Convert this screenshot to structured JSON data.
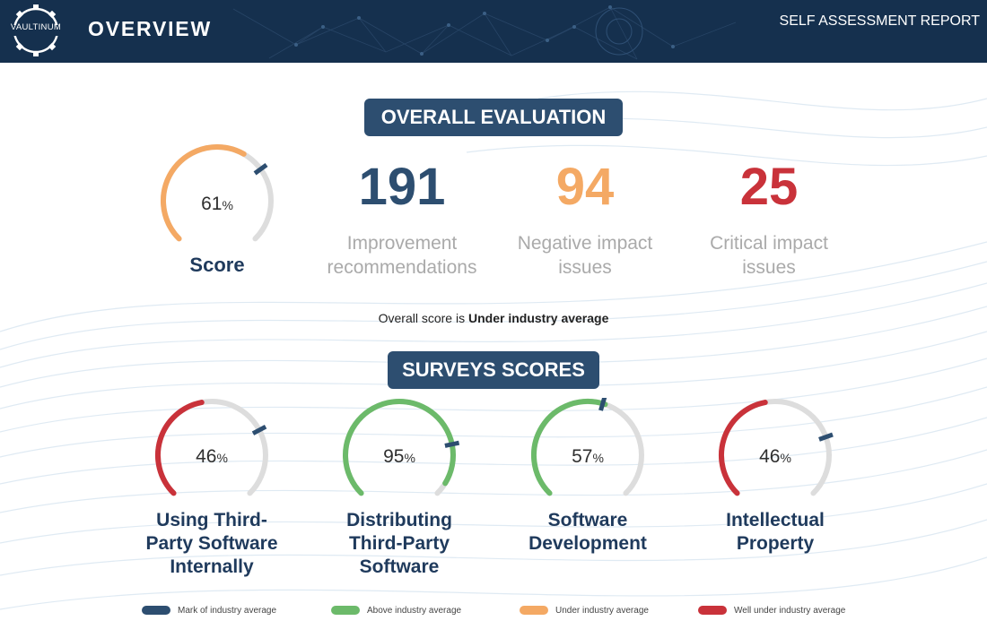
{
  "header": {
    "logo_text": "VAULTINUM",
    "title": "OVERVIEW",
    "report_label": "SELF ASSESSMENT REPORT"
  },
  "overall": {
    "heading": "OVERALL EVALUATION",
    "score": {
      "value": "61",
      "unit": "%",
      "label": "Score",
      "fraction": 0.61,
      "color": "#f4a964"
    },
    "stats": [
      {
        "number": "191",
        "label_line1": "Improvement",
        "label_line2": "recommendations",
        "color": "#2d4e70"
      },
      {
        "number": "94",
        "label_line1": "Negative impact",
        "label_line2": "issues",
        "color": "#f4a964"
      },
      {
        "number": "25",
        "label_line1": "Critical impact",
        "label_line2": "issues",
        "color": "#c9323a"
      }
    ],
    "summary_prefix": "Overall score is ",
    "summary_status": "Under industry average"
  },
  "surveys": {
    "heading": "SURVEYS SCORES",
    "items": [
      {
        "value": "46",
        "unit": "%",
        "fraction": 0.46,
        "color": "#c9323a",
        "title_lines": [
          "Using Third-",
          "Party Software",
          "Internally"
        ]
      },
      {
        "value": "95",
        "unit": "%",
        "fraction": 0.95,
        "color": "#6cba6a",
        "title_lines": [
          "Distributing",
          "Third-Party",
          "Software"
        ]
      },
      {
        "value": "57",
        "unit": "%",
        "fraction": 0.57,
        "color": "#6cba6a",
        "title_lines": [
          "Software",
          "Development"
        ]
      },
      {
        "value": "46",
        "unit": "%",
        "fraction": 0.46,
        "color": "#c9323a",
        "title_lines": [
          "Intellectual",
          "Property"
        ]
      }
    ]
  },
  "legend": [
    {
      "label": "Mark of industry average",
      "color": "#2d4e70"
    },
    {
      "label": "Above industry average",
      "color": "#6cba6a"
    },
    {
      "label": "Under industry average",
      "color": "#f4a964"
    },
    {
      "label": "Well under industry average",
      "color": "#c9323a"
    }
  ],
  "colors": {
    "header_bg": "#15304e",
    "pill_bg": "#2d4e70",
    "track": "#dddddd",
    "marker": "#2d4e70"
  }
}
